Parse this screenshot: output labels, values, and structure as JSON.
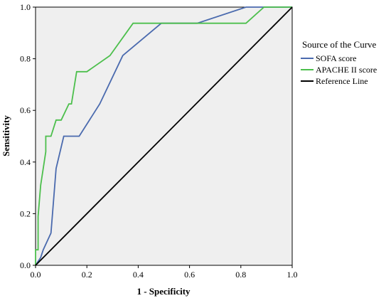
{
  "chart_data": {
    "type": "line",
    "title": "",
    "xlabel": "1 - Specificity",
    "ylabel": "Sensitivity",
    "xlim": [
      0,
      1
    ],
    "ylim": [
      0,
      1
    ],
    "xticks": [
      "0.0",
      "0.2",
      "0.4",
      "0.6",
      "0.8",
      "1.0"
    ],
    "yticks": [
      "0.0",
      "0.2",
      "0.4",
      "0.6",
      "0.8",
      "1.0"
    ],
    "grid": false,
    "plot_background": "#efefef",
    "legend": {
      "title": "Source of the Curve",
      "placement": "right"
    },
    "series": [
      {
        "name": "SOFA score",
        "color": "#4a6aae",
        "points": [
          [
            0.0,
            0.0
          ],
          [
            0.02,
            0.03
          ],
          [
            0.03,
            0.06
          ],
          [
            0.06,
            0.125
          ],
          [
            0.08,
            0.375
          ],
          [
            0.11,
            0.5
          ],
          [
            0.17,
            0.5
          ],
          [
            0.25,
            0.625
          ],
          [
            0.34,
            0.8125
          ],
          [
            0.49,
            0.9375
          ],
          [
            0.63,
            0.9375
          ],
          [
            0.82,
            1.0
          ],
          [
            1.0,
            1.0
          ]
        ]
      },
      {
        "name": "APACHE II score",
        "color": "#4cbf4c",
        "points": [
          [
            0.0,
            0.0
          ],
          [
            0.0,
            0.06
          ],
          [
            0.01,
            0.06
          ],
          [
            0.01,
            0.19
          ],
          [
            0.02,
            0.31
          ],
          [
            0.03,
            0.375
          ],
          [
            0.04,
            0.44
          ],
          [
            0.04,
            0.5
          ],
          [
            0.06,
            0.5
          ],
          [
            0.08,
            0.5625
          ],
          [
            0.1,
            0.5625
          ],
          [
            0.13,
            0.625
          ],
          [
            0.14,
            0.625
          ],
          [
            0.16,
            0.75
          ],
          [
            0.2,
            0.75
          ],
          [
            0.29,
            0.8125
          ],
          [
            0.38,
            0.9375
          ],
          [
            0.82,
            0.9375
          ],
          [
            0.89,
            1.0
          ],
          [
            1.0,
            1.0
          ]
        ]
      },
      {
        "name": "Reference Line",
        "color": "#000000",
        "points": [
          [
            0.0,
            0.0
          ],
          [
            1.0,
            1.0
          ]
        ]
      }
    ]
  }
}
